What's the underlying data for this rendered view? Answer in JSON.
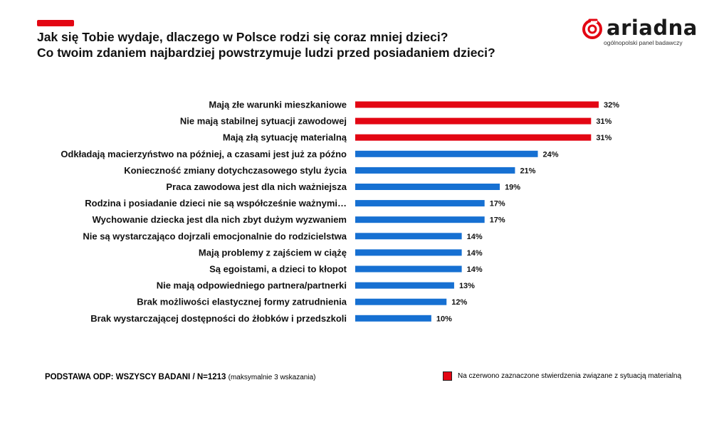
{
  "title": {
    "line1": "Jak się Tobie wydaje, dlaczego w Polsce rodzi się coraz mniej dzieci?",
    "line2": "Co twoim zdaniem najbardziej powstrzymuje ludzi przed posiadaniem dzieci?"
  },
  "logo": {
    "name": "ariadna",
    "tagline": "ogólnopolski panel badawczy"
  },
  "footer": {
    "base": "PODSTAWA ODP: WSZYSCY BADANI / N=1213",
    "note": "(maksymalnie 3 wskazania)"
  },
  "legend": {
    "label": "Na czerwono zaznaczone stwierdzenia związane z sytuacją materialną"
  },
  "colors": {
    "highlight": "#e30613",
    "default": "#1670d2",
    "accent": "#e30613"
  },
  "chart_data": {
    "type": "bar",
    "orientation": "horizontal",
    "categories": [
      "Mają złe warunki mieszkaniowe",
      "Nie mają stabilnej sytuacji zawodowej",
      "Mają złą sytuację materialną",
      "Odkładają macierzyństwo na później, a czasami jest już za późno",
      "Konieczność zmiany dotychczasowego stylu życia",
      "Praca zawodowa jest dla nich ważniejsza",
      "Rodzina i posiadanie dzieci nie są współcześnie ważnymi…",
      "Wychowanie dziecka jest dla nich zbyt dużym wyzwaniem",
      "Nie są wystarczająco dojrzali emocjonalnie do rodzicielstwa",
      "Mają problemy z zajściem w ciążę",
      "Są egoistami, a dzieci to kłopot",
      "Nie mają odpowiedniego partnera/partnerki",
      "Brak możliwości elastycznej formy zatrudnienia",
      "Brak wystarczającej dostępności do żłobków i przedszkoli"
    ],
    "values": [
      32,
      31,
      31,
      24,
      21,
      19,
      17,
      17,
      14,
      14,
      14,
      13,
      12,
      10
    ],
    "value_labels": [
      "32%",
      "31%",
      "31%",
      "24%",
      "21%",
      "19%",
      "17%",
      "17%",
      "14%",
      "14%",
      "14%",
      "13%",
      "12%",
      "10%"
    ],
    "highlighted": [
      true,
      true,
      true,
      false,
      false,
      false,
      false,
      false,
      false,
      false,
      false,
      false,
      false,
      false
    ],
    "unit": "%",
    "xlim": [
      0,
      32
    ]
  }
}
